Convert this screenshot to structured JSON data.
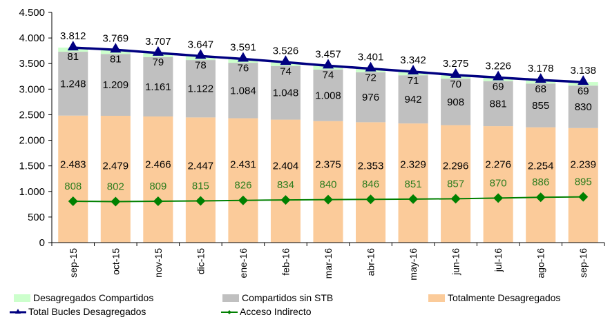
{
  "chart_data": {
    "type": "bar",
    "stacked": true,
    "title": "",
    "xlabel": "",
    "ylabel": "",
    "ylim": [
      0,
      4500
    ],
    "yticks": [
      0,
      500,
      1000,
      1500,
      2000,
      2500,
      3000,
      3500,
      4000,
      4500
    ],
    "ytick_labels": [
      "0",
      "500",
      "1.000",
      "1.500",
      "2.000",
      "2.500",
      "3.000",
      "3.500",
      "4.000",
      "4.500"
    ],
    "grid": false,
    "legend_position": "bottom",
    "categories": [
      "sep-15",
      "oct-15",
      "nov-15",
      "dic-15",
      "ene-16",
      "feb-16",
      "mar-16",
      "abr-16",
      "may-16",
      "jun-16",
      "jul-16",
      "ago-16",
      "sep-16"
    ],
    "series": [
      {
        "name": "Totalmente Desagregados",
        "kind": "bar",
        "color": "#FBCB9A",
        "values": [
          2483,
          2479,
          2466,
          2447,
          2431,
          2404,
          2375,
          2353,
          2329,
          2296,
          2276,
          2254,
          2239
        ],
        "labels": [
          "2.483",
          "2.479",
          "2.466",
          "2.447",
          "2.431",
          "2.404",
          "2.375",
          "2.353",
          "2.329",
          "2.296",
          "2.276",
          "2.254",
          "2.239"
        ]
      },
      {
        "name": "Compartidos sin STB",
        "kind": "bar",
        "color": "#C0C0C0",
        "values": [
          1248,
          1209,
          1161,
          1122,
          1084,
          1048,
          1008,
          976,
          942,
          908,
          881,
          855,
          830
        ],
        "labels": [
          "1.248",
          "1.209",
          "1.161",
          "1.122",
          "1.084",
          "1.048",
          "1.008",
          "976",
          "942",
          "908",
          "881",
          "855",
          "830"
        ]
      },
      {
        "name": "Desagregados Compartidos",
        "kind": "bar",
        "color": "#CCFFCC",
        "values": [
          81,
          81,
          79,
          78,
          76,
          74,
          74,
          72,
          71,
          70,
          69,
          68,
          69
        ],
        "labels": [
          "81",
          "81",
          "79",
          "78",
          "76",
          "74",
          "74",
          "72",
          "71",
          "70",
          "69",
          "68",
          "69"
        ]
      },
      {
        "name": "Total Bucles Desagregados",
        "kind": "line",
        "marker": "triangle",
        "color": "#000080",
        "values": [
          3812,
          3769,
          3707,
          3647,
          3591,
          3526,
          3457,
          3401,
          3342,
          3275,
          3226,
          3178,
          3138
        ],
        "labels": [
          "3.812",
          "3.769",
          "3.707",
          "3.647",
          "3.591",
          "3.526",
          "3.457",
          "3.401",
          "3.342",
          "3.275",
          "3.226",
          "3.178",
          "3.138"
        ]
      },
      {
        "name": "Acceso Indirecto",
        "kind": "line",
        "marker": "diamond",
        "color": "#008000",
        "values": [
          808,
          802,
          809,
          815,
          826,
          834,
          840,
          846,
          851,
          857,
          870,
          886,
          895
        ],
        "labels": [
          "808",
          "802",
          "809",
          "815",
          "826",
          "834",
          "840",
          "846",
          "851",
          "857",
          "870",
          "886",
          "895"
        ]
      }
    ]
  },
  "legend": {
    "items": [
      {
        "label": "Desagregados Compartidos",
        "type": "swatch",
        "color": "#CCFFCC"
      },
      {
        "label": "Compartidos sin STB",
        "type": "swatch",
        "color": "#C0C0C0"
      },
      {
        "label": "Totalmente Desagregados",
        "type": "swatch",
        "color": "#FBCB9A"
      },
      {
        "label": "Total Bucles Desagregados",
        "type": "line",
        "color": "#000080"
      },
      {
        "label": "Acceso Indirecto",
        "type": "line",
        "color": "#008000"
      }
    ]
  }
}
